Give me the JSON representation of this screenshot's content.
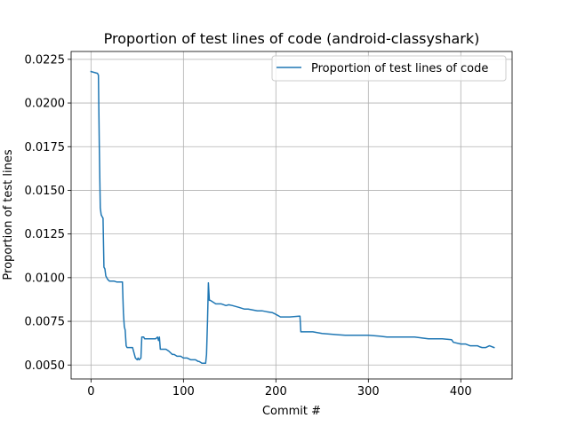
{
  "chart_data": {
    "type": "line",
    "title": "Proportion of test lines of code (android-classyshark)",
    "xlabel": "Commit #",
    "ylabel": "Proportion of test lines",
    "xlim": [
      -21.5,
      455.5
    ],
    "ylim": [
      0.0042,
      0.02295
    ],
    "xticks": [
      0,
      100,
      200,
      300,
      400
    ],
    "yticks": [
      0.005,
      0.0075,
      0.01,
      0.0125,
      0.015,
      0.0175,
      0.02,
      0.0225
    ],
    "ytick_labels": [
      "0.0050",
      "0.0075",
      "0.0100",
      "0.0125",
      "0.0150",
      "0.0175",
      "0.0200",
      "0.0225"
    ],
    "grid": true,
    "legend_position": "top-right",
    "colors": {
      "series": "#1f77b4",
      "grid": "#b0b0b0",
      "axes": "#000000"
    },
    "series": [
      {
        "name": "Proportion of test lines of code",
        "x": [
          0,
          7,
          8,
          9,
          10,
          11,
          12,
          13,
          14,
          15,
          16,
          18,
          20,
          22,
          25,
          28,
          30,
          34,
          35,
          36,
          37,
          38,
          39,
          41,
          43,
          45,
          48,
          50,
          51,
          52,
          54,
          55,
          56,
          57,
          58,
          62,
          66,
          70,
          72,
          73,
          74,
          75,
          76,
          77,
          81,
          84,
          88,
          90,
          93,
          97,
          100,
          104,
          108,
          113,
          116,
          117,
          120,
          124,
          125,
          126,
          127,
          128,
          129,
          132,
          135,
          141,
          146,
          149,
          153,
          160,
          166,
          170,
          180,
          185,
          190,
          196,
          200,
          205,
          215,
          225,
          226,
          227,
          228,
          240,
          250,
          262,
          275,
          290,
          300,
          312,
          320,
          330,
          345,
          350,
          365,
          380,
          390,
          392,
          400,
          405,
          410,
          418,
          420,
          423,
          427,
          431,
          436
        ],
        "y": [
          0.0218,
          0.0217,
          0.0216,
          0.0175,
          0.014,
          0.0136,
          0.0135,
          0.0134,
          0.0106,
          0.0105,
          0.0101,
          0.0099,
          0.0098,
          0.0098,
          0.0098,
          0.00975,
          0.00975,
          0.00975,
          0.008,
          0.0072,
          0.007,
          0.0061,
          0.006,
          0.006,
          0.006,
          0.006,
          0.0054,
          0.0053,
          0.0054,
          0.0053,
          0.0054,
          0.0066,
          0.0066,
          0.0066,
          0.0065,
          0.0065,
          0.0065,
          0.0065,
          0.0066,
          0.0064,
          0.0066,
          0.0059,
          0.0059,
          0.0059,
          0.0059,
          0.0058,
          0.0056,
          0.0056,
          0.0055,
          0.0055,
          0.0054,
          0.0054,
          0.0053,
          0.0053,
          0.0052,
          0.0052,
          0.0051,
          0.0051,
          0.0056,
          0.0075,
          0.0097,
          0.0087,
          0.0087,
          0.0086,
          0.0085,
          0.0085,
          0.0084,
          0.00845,
          0.0084,
          0.0083,
          0.0082,
          0.0082,
          0.0081,
          0.0081,
          0.00805,
          0.008,
          0.0079,
          0.00775,
          0.00775,
          0.0078,
          0.0078,
          0.0069,
          0.0069,
          0.0069,
          0.0068,
          0.00675,
          0.0067,
          0.0067,
          0.0067,
          0.00665,
          0.0066,
          0.0066,
          0.0066,
          0.0066,
          0.0065,
          0.0065,
          0.00645,
          0.0063,
          0.0062,
          0.0062,
          0.0061,
          0.0061,
          0.00605,
          0.006,
          0.006,
          0.0061,
          0.006
        ]
      }
    ]
  }
}
